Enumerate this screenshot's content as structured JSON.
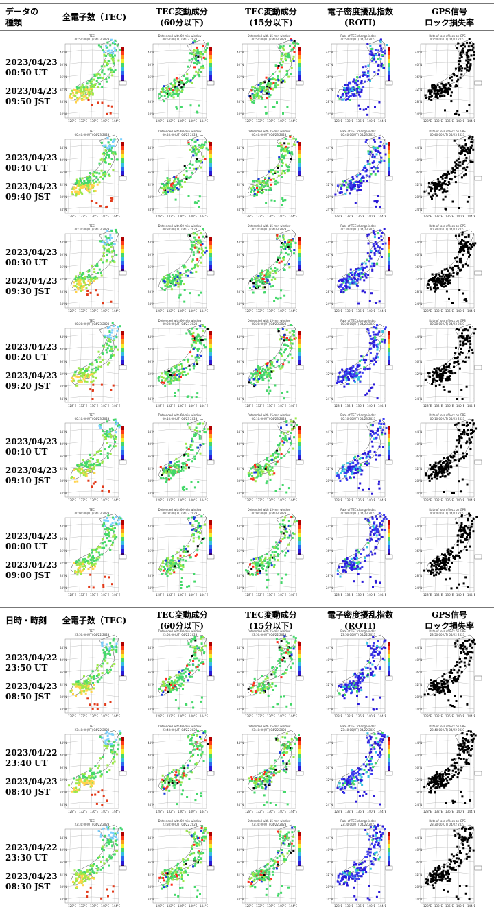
{
  "headers": [
    {
      "c0a": "データの",
      "c0b": "種類",
      "c1": "全電子数（TEC)",
      "c2a": "TEC変動成分",
      "c2b": "(60分以下)",
      "c3a": "TEC変動成分",
      "c3b": "(15分以下)",
      "c4a": "電子密度擾乱指数",
      "c4b": "(ROTI)",
      "c5a": "GPS信号",
      "c5b": "ロック損失率"
    },
    {
      "c0a": "日時・時刻",
      "c0b": "",
      "c1": "全電子数（TEC)",
      "c2a": "TEC変動成分",
      "c2b": "(60分以下)",
      "c3a": "TEC変動成分",
      "c3b": "(15分以下)",
      "c4a": "電子密度擾乱指数",
      "c4b": "(ROTI)",
      "c5a": "GPS信号",
      "c5b": "ロック損失率"
    }
  ],
  "rows": [
    {
      "date_ut": "2023/04/23",
      "time_ut": "00:50 UT",
      "date_jst": "2023/04/23",
      "time_jst": "09:50 JST",
      "maps": [
        {
          "title": "TEC",
          "stamp": "00:50:00(UT) 04/23 2023"
        },
        {
          "title": "Detrended with 60-min window",
          "stamp": "00:50:00(UT) 04/23 2023"
        },
        {
          "title": "Detrended with 15-min window",
          "stamp": "00:50:00(UT) 04/23 2023"
        },
        {
          "title": "Rate of TEC change index",
          "stamp": "00:50:00(UT) 04/23 2023"
        },
        {
          "title": "Rate of loss of lock on GPS",
          "stamp": "00:50:00(UT) 04/23 2023"
        }
      ]
    },
    {
      "date_ut": "2023/04/23",
      "time_ut": "00:40 UT",
      "date_jst": "2023/04/23",
      "time_jst": "09:40 JST",
      "maps": [
        {
          "title": "TEC",
          "stamp": "00:40:00(UT) 04/23 2023"
        },
        {
          "title": "Detrended with 60-min window",
          "stamp": "00:40:00(UT) 04/23 2023"
        },
        {
          "title": "Detrended with 15-min window",
          "stamp": "00:40:00(UT) 04/23 2023"
        },
        {
          "title": "Rate of TEC change index",
          "stamp": "00:40:00(UT) 04/23 2023"
        },
        {
          "title": "Rate of loss of lock on GPS",
          "stamp": "00:40:00(UT) 04/23 2023"
        }
      ]
    },
    {
      "date_ut": "2023/04/23",
      "time_ut": "00:30 UT",
      "date_jst": "2023/04/23",
      "time_jst": "09:30 JST",
      "maps": [
        {
          "title": "TEC",
          "stamp": "00:30:00(UT) 04/23 2023"
        },
        {
          "title": "Detrended with 60-min window",
          "stamp": "00:30:00(UT) 04/23 2023"
        },
        {
          "title": "Detrended with 15-min window",
          "stamp": "00:30:00(UT) 04/23 2023"
        },
        {
          "title": "Rate of TEC change index",
          "stamp": "00:30:00(UT) 04/23 2023"
        },
        {
          "title": "Rate of loss of lock on GPS",
          "stamp": "00:30:00(UT) 04/23 2023"
        }
      ]
    },
    {
      "date_ut": "2023/04/23",
      "time_ut": "00:20 UT",
      "date_jst": "2023/04/23",
      "time_jst": "09:20 JST",
      "maps": [
        {
          "title": "TEC",
          "stamp": "00:20:00(UT) 04/23 2023"
        },
        {
          "title": "Detrended with 60-min window",
          "stamp": "00:20:00(UT) 04/23 2023"
        },
        {
          "title": "Detrended with 15-min window",
          "stamp": "00:20:00(UT) 04/23 2023"
        },
        {
          "title": "Rate of TEC change index",
          "stamp": "00:20:00(UT) 04/23 2023"
        },
        {
          "title": "Rate of loss of lock on GPS",
          "stamp": "00:20:00(UT) 04/23 2023"
        }
      ]
    },
    {
      "date_ut": "2023/04/23",
      "time_ut": "00:10 UT",
      "date_jst": "2023/04/23",
      "time_jst": "09:10 JST",
      "maps": [
        {
          "title": "TEC",
          "stamp": "00:10:00(UT) 04/23 2023"
        },
        {
          "title": "Detrended with 60-min window",
          "stamp": "00:10:00(UT) 04/23 2023"
        },
        {
          "title": "Detrended with 15-min window",
          "stamp": "00:10:00(UT) 04/23 2023"
        },
        {
          "title": "Rate of TEC change index",
          "stamp": "00:10:00(UT) 04/23 2023"
        },
        {
          "title": "Rate of loss of lock on GPS",
          "stamp": "00:10:00(UT) 04/23 2023"
        }
      ]
    },
    {
      "date_ut": "2023/04/23",
      "time_ut": "00:00 UT",
      "date_jst": "2023/04/23",
      "time_jst": "09:00 JST",
      "maps": [
        {
          "title": "TEC",
          "stamp": "00:00:00(UT) 04/23 2023"
        },
        {
          "title": "Detrended with 60-min window",
          "stamp": "00:00:00(UT) 04/23 2023"
        },
        {
          "title": "Detrended with 15-min window",
          "stamp": "00:00:00(UT) 04/23 2023"
        },
        {
          "title": "Rate of TEC change index",
          "stamp": "00:00:00(UT) 04/23 2023"
        },
        {
          "title": "Rate of loss of lock on GPS",
          "stamp": "00:00:00(UT) 04/23 2023"
        }
      ]
    },
    {
      "date_ut": "2023/04/22",
      "time_ut": "23:50 UT",
      "date_jst": "2023/04/23",
      "time_jst": "08:50 JST",
      "maps": [
        {
          "title": "TEC",
          "stamp": "23:50:00(UT) 04/22 2023"
        },
        {
          "title": "Detrended with 60-min window",
          "stamp": "23:50:00(UT) 04/22 2023"
        },
        {
          "title": "Detrended with 15-min window",
          "stamp": "23:50:00(UT) 04/22 2023"
        },
        {
          "title": "Rate of TEC change index",
          "stamp": "23:50:00(UT) 04/22 2023"
        },
        {
          "title": "Rate of loss of lock on GPS",
          "stamp": "23:50:00(UT) 04/22 2023"
        }
      ]
    },
    {
      "date_ut": "2023/04/22",
      "time_ut": "23:40 UT",
      "date_jst": "2023/04/23",
      "time_jst": "08:40 JST",
      "maps": [
        {
          "title": "TEC",
          "stamp": "23:40:00(UT) 04/22 2023"
        },
        {
          "title": "Detrended with 60-min window",
          "stamp": "23:40:00(UT) 04/22 2023"
        },
        {
          "title": "Detrended with 15-min window",
          "stamp": "23:40:00(UT) 04/22 2023"
        },
        {
          "title": "Rate of TEC change index",
          "stamp": "23:40:00(UT) 04/22 2023"
        },
        {
          "title": "Rate of loss of lock on GPS",
          "stamp": "23:40:00(UT) 04/22 2023"
        }
      ]
    },
    {
      "date_ut": "2023/04/22",
      "time_ut": "23:30 UT",
      "date_jst": "2023/04/23",
      "time_jst": "08:30 JST",
      "maps": [
        {
          "title": "TEC",
          "stamp": "23:30:00(UT) 04/22 2023"
        },
        {
          "title": "Detrended with 60-min window",
          "stamp": "23:30:00(UT) 04/22 2023"
        },
        {
          "title": "Detrended with 15-min window",
          "stamp": "23:30:00(UT) 04/22 2023"
        },
        {
          "title": "Rate of TEC change index",
          "stamp": "23:30:00(UT) 04/22 2023"
        },
        {
          "title": "Rate of loss of lock on GPS",
          "stamp": "23:30:00(UT) 04/22 2023"
        }
      ]
    }
  ],
  "map_lat_ticks": [
    "44°N",
    "40°N",
    "36°N",
    "32°N",
    "28°N",
    "24°N"
  ],
  "map_lon_ticks": [
    "128°E",
    "132°E",
    "136°E",
    "140°E",
    "144°E"
  ],
  "colors": {
    "tec": [
      "#ffd24a",
      "#9be84a",
      "#44d86a",
      "#7ad0ff"
    ],
    "dtec": [
      "#44d86a",
      "#9be84a",
      "#ff2a1a",
      "#1a3bd8",
      "#000000"
    ],
    "roti": [
      "#2a1ad8",
      "#3b3bf0",
      "#36c0e0",
      "#44d86a"
    ],
    "lol": [
      "#000000"
    ]
  }
}
